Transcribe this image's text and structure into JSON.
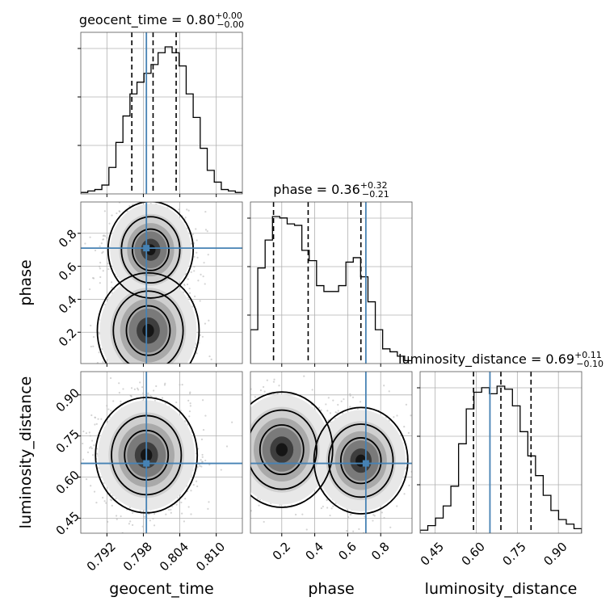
{
  "chart_data": {
    "type": "corner",
    "parameters": [
      "geocent_time",
      "phase",
      "luminosity_distance"
    ],
    "truths": {
      "geocent_time": 0.7985,
      "phase": 0.71,
      "luminosity_distance": 0.65
    },
    "ranges": {
      "geocent_time": [
        0.7877,
        0.8143
      ],
      "phase": [
        0.01,
        0.99
      ],
      "luminosity_distance": [
        0.395,
        0.985
      ]
    },
    "titles": [
      {
        "param": "geocent_time",
        "label": "geocent_time = 0.80",
        "plus": "+0.00",
        "minus": "−0.00"
      },
      {
        "param": "phase",
        "label": "phase = 0.36",
        "plus": "+0.32",
        "minus": "−0.21"
      },
      {
        "param": "luminosity_distance",
        "label": "luminosity_distance = 0.69",
        "plus": "+0.11",
        "minus": "−0.10"
      }
    ],
    "axis_labels": {
      "x": [
        "geocent_time",
        "phase",
        "luminosity_distance"
      ],
      "y": [
        "phase",
        "luminosity_distance"
      ]
    },
    "ticks": {
      "geocent_time": {
        "values": [
          0.792,
          0.798,
          0.804,
          0.81
        ],
        "labels": [
          "0.792",
          "0.798",
          "0.804",
          "0.810"
        ]
      },
      "phase": {
        "values": [
          0.2,
          0.4,
          0.6,
          0.8
        ],
        "labels": [
          "0.2",
          "0.4",
          "0.6",
          "0.8"
        ]
      },
      "luminosity_distance": {
        "values": [
          0.45,
          0.6,
          0.75,
          0.9
        ],
        "labels": [
          "0.45",
          "0.60",
          "0.75",
          "0.90"
        ]
      }
    },
    "quantiles": {
      "geocent_time": [
        0.7961,
        0.7996,
        0.8034
      ],
      "phase": [
        0.15,
        0.36,
        0.68
      ],
      "luminosity_distance": [
        0.59,
        0.69,
        0.8
      ]
    },
    "histograms": {
      "geocent_time": [
        1,
        2,
        3,
        6,
        18,
        35,
        53,
        68,
        76,
        82,
        88,
        96,
        100,
        96,
        87,
        68,
        52,
        31,
        16,
        8,
        3,
        2,
        1
      ],
      "phase": [
        23,
        65,
        84,
        100,
        99,
        95,
        94,
        77,
        70,
        53,
        49,
        49,
        53,
        69,
        72,
        59,
        42,
        23,
        10,
        8,
        5,
        2
      ],
      "luminosity_distance": [
        2,
        5,
        10,
        18,
        31,
        59,
        82,
        93,
        96,
        92,
        97,
        95,
        84,
        67,
        51,
        38,
        25,
        15,
        9,
        6,
        3
      ]
    },
    "density_2d": [
      {
        "x": "geocent_time",
        "y": "phase",
        "peaks": [
          {
            "x": 0.7988,
            "y": 0.21,
            "weight": 1.0
          },
          {
            "x": 0.7992,
            "y": 0.7,
            "weight": 0.7
          }
        ]
      },
      {
        "x": "geocent_time",
        "y": "luminosity_distance",
        "peaks": [
          {
            "x": 0.7985,
            "y": 0.68,
            "weight": 1.0
          }
        ]
      },
      {
        "x": "phase",
        "y": "luminosity_distance",
        "peaks": [
          {
            "x": 0.2,
            "y": 0.7,
            "weight": 1.0
          },
          {
            "x": 0.68,
            "y": 0.66,
            "weight": 0.85
          }
        ]
      }
    ],
    "colors": {
      "truth": "#4682b4",
      "quantile": "#000000",
      "contour": "#000000",
      "density": "#000000"
    },
    "grid": true
  }
}
